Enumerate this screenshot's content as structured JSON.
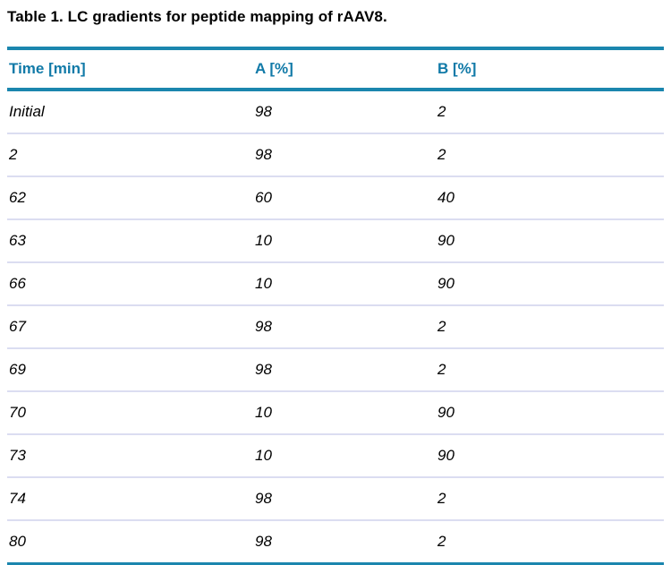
{
  "title": "Table 1. LC gradients for peptide mapping of rAAV8.",
  "colors": {
    "accent_rule": "#1B86AE",
    "header_text": "#117AA8",
    "row_separator": "#DBDDF1",
    "body_text": "#000000",
    "background": "#FFFFFF"
  },
  "table": {
    "headers": [
      "Time [min]",
      "A [%]",
      "B [%]"
    ],
    "rows": [
      [
        "Initial",
        "98",
        "2"
      ],
      [
        "2",
        "98",
        "2"
      ],
      [
        "62",
        "60",
        "40"
      ],
      [
        "63",
        "10",
        "90"
      ],
      [
        "66",
        "10",
        "90"
      ],
      [
        "67",
        "98",
        "2"
      ],
      [
        "69",
        "98",
        "2"
      ],
      [
        "70",
        "10",
        "90"
      ],
      [
        "73",
        "10",
        "90"
      ],
      [
        "74",
        "98",
        "2"
      ],
      [
        "80",
        "98",
        "2"
      ]
    ]
  }
}
